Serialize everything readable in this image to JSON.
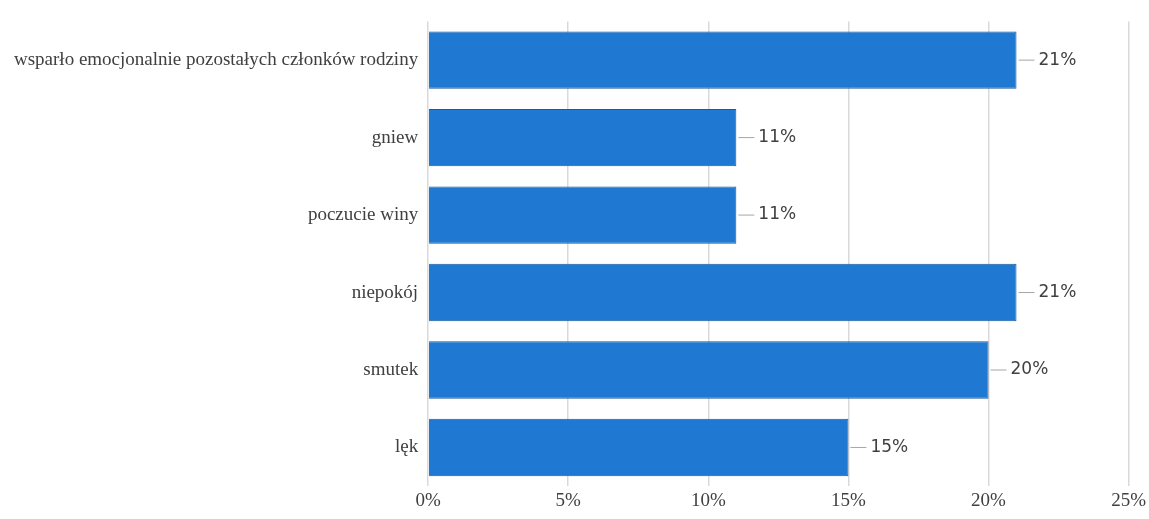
{
  "chart_data": {
    "type": "bar",
    "orientation": "horizontal",
    "categories": [
      "wsparło emocjonalnie pozostałych członków rodziny",
      "gniew",
      "poczucie winy",
      "niepokój",
      "smutek",
      "lęk"
    ],
    "values": [
      21,
      11,
      11,
      21,
      20,
      15
    ],
    "value_labels": [
      "21%",
      "11%",
      "11%",
      "21%",
      "20%",
      "15%"
    ],
    "color": "#1f78d1",
    "xlim": [
      0,
      25
    ],
    "xticks": [
      {
        "value": 0,
        "label": "0%"
      },
      {
        "value": 5,
        "label": "5%"
      },
      {
        "value": 10,
        "label": "10%"
      },
      {
        "value": 15,
        "label": "15%"
      },
      {
        "value": 20,
        "label": "20%"
      },
      {
        "value": 25,
        "label": "25%"
      }
    ],
    "grid": "x"
  }
}
